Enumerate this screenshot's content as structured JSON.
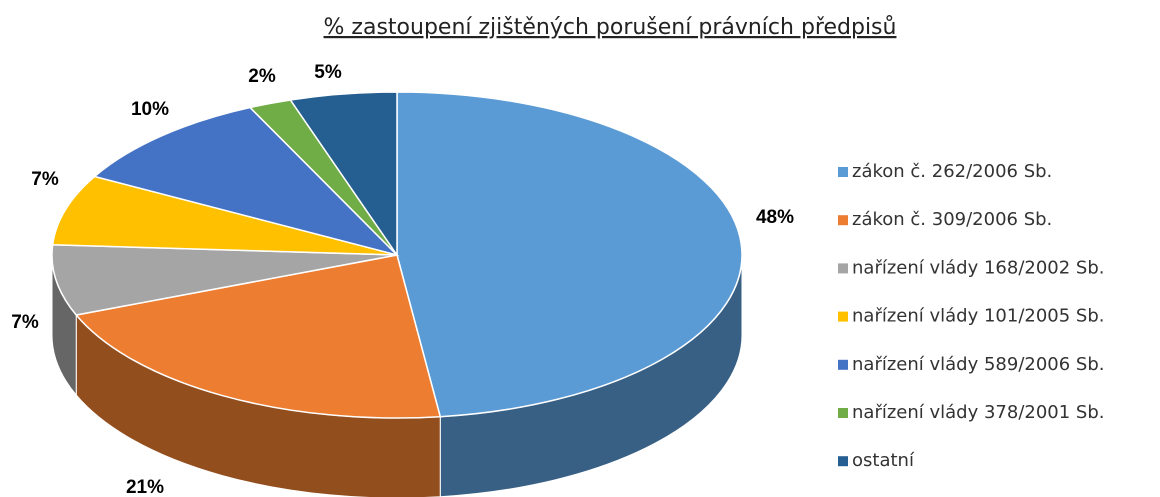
{
  "chart_data": {
    "type": "pie",
    "title": "% zastoupení zjištěných porušení právních předpisů",
    "categories": [
      "zákon č. 262/2006 Sb.",
      "zákon č. 309/2006 Sb.",
      "nařízení vlády 168/2002 Sb.",
      "nařízení vlády 101/2005 Sb.",
      "nařízení vlády 589/2006 Sb.",
      "nařízení vlády 378/2001 Sb.",
      "ostatní"
    ],
    "values": [
      48,
      21,
      7,
      7,
      10,
      2,
      5
    ],
    "value_labels": [
      "48%",
      "21%",
      "7%",
      "7%",
      "10%",
      "2%",
      "5%"
    ],
    "colors": [
      "#5b9bd5",
      "#ed7d31",
      "#a5a5a5",
      "#ffc000",
      "#4472c4",
      "#70ad47",
      "#255e91"
    ],
    "legend": "right"
  }
}
